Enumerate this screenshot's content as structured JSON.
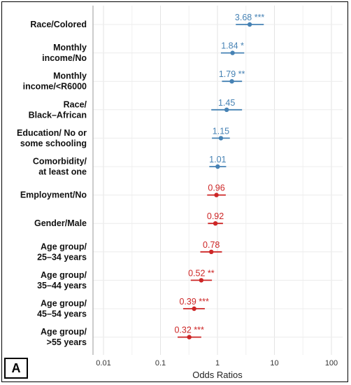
{
  "panel_label": "A",
  "chart_data": {
    "type": "scatter",
    "subtype": "forest-plot",
    "title": "",
    "xlabel": "Odds Ratios",
    "ylabel": "",
    "x_scale": "log",
    "xlim": [
      0.004,
      200
    ],
    "x_ticks": [
      {
        "value": 0.01,
        "label": "0.01"
      },
      {
        "value": 0.1,
        "label": "0.1"
      },
      {
        "value": 1,
        "label": "1"
      },
      {
        "value": 10,
        "label": "10"
      },
      {
        "value": 100,
        "label": "100"
      }
    ],
    "grid": true,
    "reference_line": 1,
    "colors": {
      "above_one": "#4682b4",
      "below_one": "#cd2626"
    },
    "items": [
      {
        "label_lines": [
          "Race/Colored"
        ],
        "value": 3.68,
        "ci": [
          2.1,
          6.5
        ],
        "label": "3.68 ***"
      },
      {
        "label_lines": [
          "Monthly",
          "income/No"
        ],
        "value": 1.84,
        "ci": [
          1.15,
          2.95
        ],
        "label": "1.84 *"
      },
      {
        "label_lines": [
          "Monthly",
          "income/<R6000"
        ],
        "value": 1.79,
        "ci": [
          1.2,
          2.7
        ],
        "label": "1.79 **"
      },
      {
        "label_lines": [
          "Race/",
          "Black–African"
        ],
        "value": 1.45,
        "ci": [
          0.78,
          2.7
        ],
        "label": "1.45"
      },
      {
        "label_lines": [
          "Education/ No or",
          "some schooling"
        ],
        "value": 1.15,
        "ci": [
          0.8,
          1.65
        ],
        "label": "1.15"
      },
      {
        "label_lines": [
          "Comorbidity/",
          "at least one"
        ],
        "value": 1.01,
        "ci": [
          0.72,
          1.42
        ],
        "label": "1.01"
      },
      {
        "label_lines": [
          "Employment/No"
        ],
        "value": 0.96,
        "ci": [
          0.66,
          1.4
        ],
        "label": "0.96"
      },
      {
        "label_lines": [
          "Gender/Male"
        ],
        "value": 0.92,
        "ci": [
          0.68,
          1.25
        ],
        "label": "0.92"
      },
      {
        "label_lines": [
          "Age group/",
          "25–34 years"
        ],
        "value": 0.78,
        "ci": [
          0.5,
          1.2
        ],
        "label": "0.78"
      },
      {
        "label_lines": [
          "Age group/",
          "35–44 years"
        ],
        "value": 0.52,
        "ci": [
          0.34,
          0.8
        ],
        "label": "0.52 **"
      },
      {
        "label_lines": [
          "Age group/",
          "45–54 years"
        ],
        "value": 0.39,
        "ci": [
          0.25,
          0.6
        ],
        "label": "0.39 ***"
      },
      {
        "label_lines": [
          "Age group/",
          ">55 years"
        ],
        "value": 0.32,
        "ci": [
          0.2,
          0.52
        ],
        "label": "0.32 ***"
      }
    ]
  }
}
